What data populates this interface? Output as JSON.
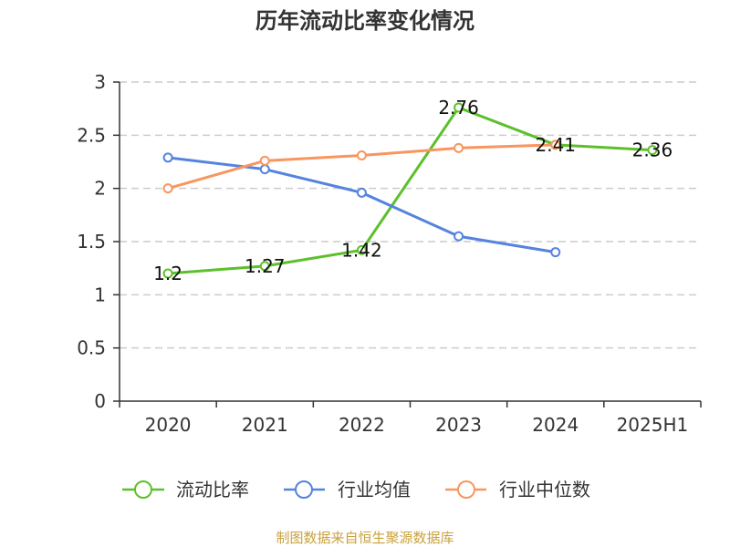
{
  "chart_data": {
    "type": "line",
    "title": "历年流动比率变化情况",
    "categories": [
      "2020",
      "2021",
      "2022",
      "2023",
      "2024",
      "2025H1"
    ],
    "ylim": [
      0,
      3
    ],
    "yticks": [
      0,
      0.5,
      1,
      1.5,
      2,
      2.5,
      3
    ],
    "grid": true,
    "legend": "bottom",
    "series": [
      {
        "name": "流动比率",
        "values": [
          1.2,
          1.27,
          1.42,
          2.76,
          2.41,
          2.36
        ],
        "color": "#5cc02b",
        "data_labels": true
      },
      {
        "name": "行业均值",
        "values": [
          2.29,
          2.18,
          1.96,
          1.55,
          1.4,
          null
        ],
        "color": "#5583de",
        "data_labels": false
      },
      {
        "name": "行业中位数",
        "values": [
          2.0,
          2.26,
          2.31,
          2.38,
          2.41,
          null
        ],
        "color": "#f8965f",
        "data_labels": false
      }
    ]
  },
  "source_note": "制图数据来自恒生聚源数据库",
  "colors": {
    "source_note": "#c9a23c",
    "axis": "#333333",
    "grid": "#cccccc"
  }
}
